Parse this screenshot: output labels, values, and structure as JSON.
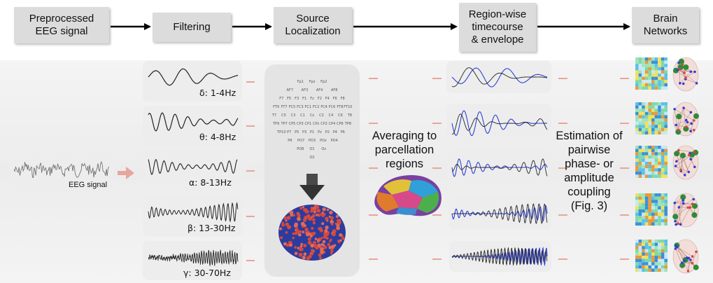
{
  "pipeline": {
    "steps": [
      {
        "label_line1": "Preprocessed",
        "label_line2": "EEG signal"
      },
      {
        "label_line1": "Filtering",
        "label_line2": ""
      },
      {
        "label_line1": "Source",
        "label_line2": "Localization"
      },
      {
        "label_line1": "Region-wise",
        "label_line2": "timecourse",
        "label_line3": "& envelope"
      },
      {
        "label_line1": "Brain",
        "label_line2": "Networks"
      }
    ]
  },
  "input": {
    "label": "EEG signal"
  },
  "bands": [
    {
      "label": "δ: 1-4Hz"
    },
    {
      "label": "θ: 4-8Hz"
    },
    {
      "label": "α: 8-13Hz"
    },
    {
      "label": "β: 13-30Hz"
    },
    {
      "label": "γ: 30-70Hz"
    }
  ],
  "averaging": {
    "line1": "Averaging to",
    "line2": "parcellation",
    "line3": "regions"
  },
  "estimation": {
    "line1": "Estimation of",
    "line2": "pairwise",
    "line3": "phase- or",
    "line4": "amplitude",
    "line5": "coupling",
    "line6": "(Fig. 3)"
  },
  "electrodes": [
    "Fp1",
    "Fpz",
    "Fp2",
    "AF7",
    "AF3",
    "AF4",
    "AF8",
    "F7",
    "F5",
    "F3",
    "F1",
    "Fz",
    "F2",
    "F4",
    "F6",
    "F8",
    "FT9",
    "FT7",
    "FC5",
    "FC3",
    "FC1",
    "FC2",
    "FC4",
    "FC6",
    "FT8",
    "FT10",
    "T7",
    "C5",
    "C3",
    "C1",
    "Cz",
    "C2",
    "C4",
    "C6",
    "T8",
    "TP9",
    "TP7",
    "CP5",
    "CP3",
    "CP1",
    "CPz",
    "CP2",
    "CP4",
    "CP6",
    "TP8",
    "TP10",
    "P7",
    "P5",
    "P3",
    "P1",
    "Pz",
    "P2",
    "P4",
    "P6",
    "P8",
    "PO7",
    "PO3",
    "POz",
    "PO4",
    "PO8",
    "O1",
    "Oz",
    "O2"
  ],
  "colors": {
    "header_bg": "#dcdcdc",
    "panel_bg": "#ededed",
    "arrow": "#000000",
    "input_arrow": "#e8a59c",
    "dash": "#e8a59c",
    "wave_dark": "#222222",
    "wave_blue": "#2d3fd6"
  }
}
